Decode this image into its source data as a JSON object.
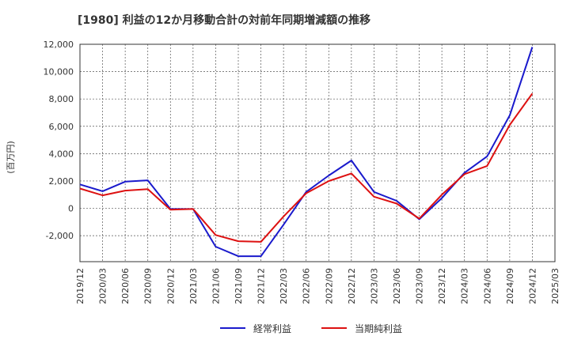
{
  "chart_data": {
    "type": "line",
    "title": "[1980]  利益の12か月移動合計の対前年同期増減額の推移",
    "ylabel": "(百万円)",
    "xlabel": "",
    "ylim": [
      -3900,
      12000
    ],
    "yticks": [
      -2000,
      0,
      2000,
      4000,
      6000,
      8000,
      10000,
      12000
    ],
    "ytick_labels": [
      "-2,000",
      "0",
      "2,000",
      "4,000",
      "6,000",
      "8,000",
      "10,000",
      "12,000"
    ],
    "x_labels": [
      "2019/12",
      "2020/03",
      "2020/06",
      "2020/09",
      "2020/12",
      "2021/03",
      "2021/06",
      "2021/09",
      "2021/12",
      "2022/03",
      "2022/06",
      "2022/09",
      "2022/12",
      "2023/03",
      "2023/06",
      "2023/09",
      "2023/12",
      "2024/03",
      "2024/06",
      "2024/09",
      "2024/12",
      "2025/03"
    ],
    "series": [
      {
        "name": "経常利益",
        "color": "#1a1acc",
        "values": [
          1750,
          1250,
          1950,
          2050,
          -50,
          -50,
          -2800,
          -3500,
          -3500,
          -1200,
          1200,
          2400,
          3500,
          1200,
          550,
          -800,
          750,
          2600,
          3800,
          6800,
          11800,
          null
        ]
      },
      {
        "name": "当期純利益",
        "color": "#dd1111",
        "values": [
          1450,
          950,
          1300,
          1400,
          -100,
          -50,
          -1950,
          -2400,
          -2450,
          -600,
          1100,
          2000,
          2550,
          850,
          350,
          -750,
          1000,
          2500,
          3100,
          6100,
          8400,
          null
        ]
      }
    ],
    "legend_position": "bottom"
  }
}
